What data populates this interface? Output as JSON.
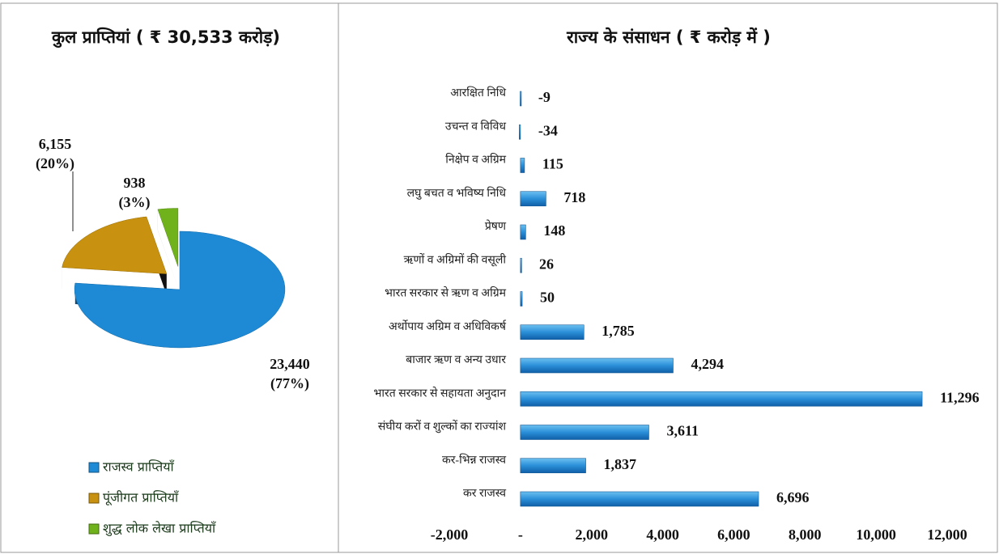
{
  "chart_data": [
    {
      "type": "pie",
      "title": "कुल प्राप्तियां ( ₹ 30,533 करोड़)",
      "categories": [
        "राजस्व प्राप्तियाँ",
        "पूंजीगत प्राप्तियाँ",
        "शुद्ध लोक लेखा प्राप्तियाँ"
      ],
      "values": [
        23440,
        6155,
        938
      ],
      "value_labels": [
        "23,440",
        "6,155",
        "938"
      ],
      "percentages": [
        77,
        20,
        3
      ],
      "percentage_labels": [
        "(77%)",
        "(20%)",
        "(3%)"
      ],
      "colors": [
        "#1e8ad6",
        "#c8910f",
        "#6fb21c"
      ]
    },
    {
      "type": "bar",
      "orientation": "horizontal",
      "title": "राज्य के संसाधन ( ₹ करोड़ में )",
      "categories": [
        "आरक्षित निधि",
        "उचन्त व विविध",
        "निक्षेप व अग्रिम",
        "लघु बचत व भविष्य निधि",
        "प्रेषण",
        "ऋणों व अग्रिमों की वसूली",
        "भारत सरकार से ऋण व अग्रिम",
        "अर्थोपाय अग्रिम व अधिविकर्ष",
        "बाजार ऋण व अन्य उधार",
        "भारत सरकार से सहायता अनुदान",
        "संघीय करों व शुल्कों का राज्यांश",
        "कर-भिन्न राजस्व",
        "कर राजस्व"
      ],
      "values": [
        -9,
        -34,
        115,
        718,
        148,
        26,
        50,
        1785,
        4294,
        11296,
        3611,
        1837,
        6696
      ],
      "value_labels": [
        "-9",
        "-34",
        "115",
        "718",
        "148",
        "26",
        "50",
        "1,785",
        "4,294",
        "11,296",
        "3,611",
        "1,837",
        "6,696"
      ],
      "color": "#2a8fd8",
      "xlim": [
        -2000,
        12000
      ],
      "xticks": [
        {
          "value": -2000,
          "label": "-2,000"
        },
        {
          "value": 0,
          "label": "-"
        },
        {
          "value": 2000,
          "label": "2,000"
        },
        {
          "value": 4000,
          "label": "4,000"
        },
        {
          "value": 6000,
          "label": "6,000"
        },
        {
          "value": 8000,
          "label": "8,000"
        },
        {
          "value": 10000,
          "label": "10,000"
        },
        {
          "value": 12000,
          "label": "12,000"
        }
      ],
      "grid": false
    }
  ]
}
